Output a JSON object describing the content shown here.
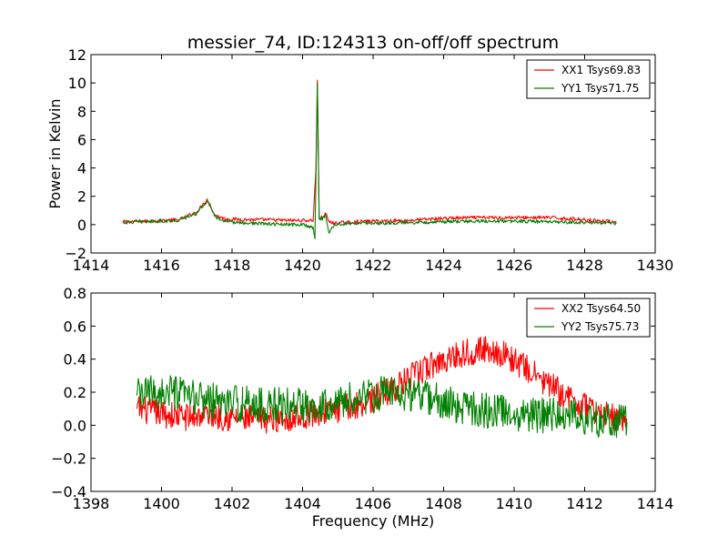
{
  "figure": {
    "title": "messier_74, ID:124313 on-off/off spectrum"
  },
  "chart_data": [
    {
      "type": "line",
      "title": "messier_74, ID:124313 on-off/off spectrum",
      "xlabel": "",
      "ylabel": "Power in Kelvin",
      "xlim": [
        1414,
        1430
      ],
      "ylim": [
        -2,
        12
      ],
      "xticks": [
        "1414",
        "1416",
        "1418",
        "1420",
        "1422",
        "1424",
        "1426",
        "1428",
        "1430"
      ],
      "yticks": [
        "−2",
        "0",
        "2",
        "4",
        "6",
        "8",
        "10",
        "12"
      ],
      "grid": false,
      "legend_position": "top-right",
      "series": [
        {
          "name": "XX1 Tsys69.83",
          "color": "#ff0000",
          "x": [
            1414.9,
            1415.5,
            1416.0,
            1416.5,
            1417.0,
            1417.2,
            1417.3,
            1417.5,
            1417.8,
            1418.5,
            1419.0,
            1419.5,
            1420.0,
            1420.3,
            1420.38,
            1420.42,
            1420.47,
            1420.55,
            1420.65,
            1420.75,
            1420.9,
            1421.5,
            1422.0,
            1423.0,
            1424.0,
            1425.0,
            1426.0,
            1427.0,
            1428.0,
            1428.9
          ],
          "y": [
            0.2,
            0.25,
            0.3,
            0.35,
            0.9,
            1.5,
            1.8,
            0.7,
            0.4,
            0.35,
            0.35,
            0.3,
            0.3,
            0.3,
            4.0,
            10.2,
            0.5,
            0.5,
            0.8,
            0.2,
            0.1,
            0.2,
            0.25,
            0.3,
            0.45,
            0.5,
            0.5,
            0.5,
            0.35,
            0.2
          ]
        },
        {
          "name": "YY1 Tsys71.75",
          "color": "#008000",
          "x": [
            1414.9,
            1415.5,
            1416.0,
            1416.5,
            1417.0,
            1417.2,
            1417.3,
            1417.5,
            1417.8,
            1418.5,
            1419.0,
            1419.5,
            1420.0,
            1420.3,
            1420.35,
            1420.42,
            1420.47,
            1420.55,
            1420.65,
            1420.75,
            1420.9,
            1421.5,
            1422.0,
            1423.0,
            1424.0,
            1425.0,
            1426.0,
            1427.0,
            1428.0,
            1428.9
          ],
          "y": [
            0.15,
            0.2,
            0.25,
            0.3,
            0.8,
            1.4,
            1.7,
            0.6,
            0.2,
            0.1,
            0.05,
            0.0,
            0.0,
            -0.2,
            -1.0,
            10.0,
            0.4,
            0.4,
            0.7,
            -0.6,
            0.0,
            0.1,
            0.1,
            0.15,
            0.2,
            0.25,
            0.25,
            0.2,
            0.15,
            0.1
          ]
        }
      ]
    },
    {
      "type": "line",
      "title": "",
      "xlabel": "Frequency (MHz)",
      "ylabel": "",
      "xlim": [
        1398,
        1414
      ],
      "ylim": [
        -0.4,
        0.8
      ],
      "xticks": [
        "1398",
        "1400",
        "1402",
        "1404",
        "1406",
        "1408",
        "1410",
        "1412",
        "1414"
      ],
      "yticks": [
        "−0.4",
        "−0.2",
        "0.0",
        "0.2",
        "0.4",
        "0.6",
        "0.8"
      ],
      "grid": false,
      "legend_position": "top-right",
      "series": [
        {
          "name": "XX2 Tsys64.50",
          "color": "#ff0000",
          "x": [
            1399.3,
            1399.8,
            1400.3,
            1400.8,
            1401.3,
            1401.8,
            1402.3,
            1402.8,
            1403.3,
            1403.8,
            1404.3,
            1404.8,
            1405.3,
            1405.8,
            1406.3,
            1406.8,
            1407.3,
            1407.8,
            1408.3,
            1408.8,
            1409.3,
            1409.8,
            1410.3,
            1410.8,
            1411.3,
            1411.8,
            1412.3,
            1412.8,
            1413.2
          ],
          "y": [
            0.1,
            0.08,
            0.06,
            0.05,
            0.07,
            0.05,
            0.04,
            0.03,
            0.04,
            0.05,
            0.07,
            0.09,
            0.11,
            0.14,
            0.19,
            0.25,
            0.32,
            0.38,
            0.42,
            0.45,
            0.46,
            0.42,
            0.35,
            0.27,
            0.2,
            0.13,
            0.08,
            0.05,
            0.04
          ]
        },
        {
          "name": "YY2 Tsys75.73",
          "color": "#008000",
          "x": [
            1399.3,
            1399.8,
            1400.3,
            1400.8,
            1401.3,
            1401.8,
            1402.3,
            1402.8,
            1403.3,
            1403.8,
            1404.3,
            1404.8,
            1405.3,
            1405.8,
            1406.3,
            1406.8,
            1407.3,
            1407.8,
            1408.3,
            1408.8,
            1409.3,
            1409.8,
            1410.3,
            1410.8,
            1411.3,
            1411.8,
            1412.3,
            1412.8,
            1413.2
          ],
          "y": [
            0.18,
            0.2,
            0.19,
            0.17,
            0.15,
            0.14,
            0.13,
            0.12,
            0.12,
            0.12,
            0.13,
            0.14,
            0.15,
            0.17,
            0.19,
            0.2,
            0.18,
            0.15,
            0.12,
            0.1,
            0.09,
            0.08,
            0.07,
            0.06,
            0.06,
            0.05,
            0.04,
            0.03,
            0.02
          ]
        }
      ]
    }
  ]
}
